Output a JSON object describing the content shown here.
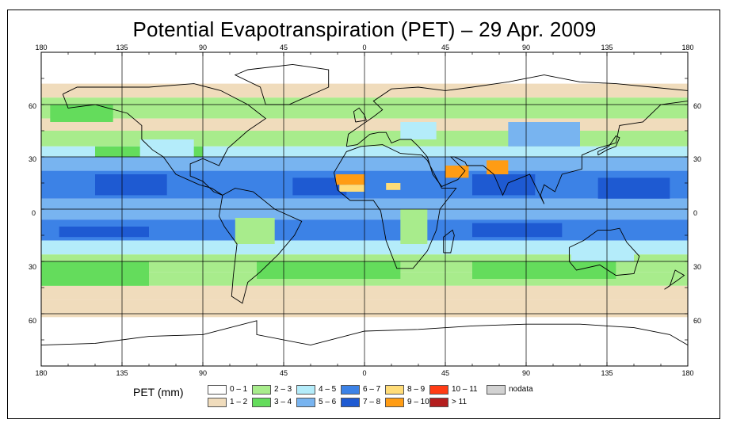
{
  "title": "Potential Evapotranspiration (PET) – 29 Apr. 2009",
  "top_axis": {
    "lon_labels": [
      "180",
      "135",
      "90",
      "45",
      "0",
      "45",
      "90",
      "135",
      "180"
    ]
  },
  "bottom_axis": {
    "lon_labels": [
      "180",
      "135",
      "90",
      "45",
      "0",
      "45",
      "90",
      "135",
      "180"
    ]
  },
  "left_axis": {
    "lat_labels": [
      "60",
      "30",
      "0",
      "30",
      "60"
    ]
  },
  "right_axis": {
    "lat_labels": [
      "60",
      "30",
      "0",
      "30",
      "60"
    ]
  },
  "legend": {
    "title": "PET (mm)",
    "items": [
      {
        "label": "0 – 1",
        "color": "#ffffff"
      },
      {
        "label": "1 – 2",
        "color": "#f0dcbc"
      },
      {
        "label": "2 – 3",
        "color": "#a8ec8c"
      },
      {
        "label": "3 – 4",
        "color": "#64dc5c"
      },
      {
        "label": "4 – 5",
        "color": "#b4ecfa"
      },
      {
        "label": "5 – 6",
        "color": "#78b4f0"
      },
      {
        "label": "6 – 7",
        "color": "#3c82e6"
      },
      {
        "label": "7 – 8",
        "color": "#1e5ad2"
      },
      {
        "label": "8 – 9",
        "color": "#ffdc78"
      },
      {
        "label": "9 – 10",
        "color": "#ff9c14"
      },
      {
        "label": "10 – 11",
        "color": "#ff3c14"
      },
      {
        "label": "> 11",
        "color": "#b41e1e"
      },
      {
        "label": "nodata",
        "color": "#d2d2d2"
      }
    ]
  },
  "map": {
    "lon_range": [
      -180,
      180
    ],
    "lat_range": [
      -90,
      90
    ],
    "grid_lons": [
      -135,
      -90,
      -45,
      0,
      45,
      90,
      135
    ],
    "grid_lats": [
      60,
      30,
      0,
      -30,
      -60
    ],
    "colors": {
      "ocean_tropics": "#3c82e6",
      "ocean_subtropics": "#78b4f0",
      "ocean_mid": "#b4ecfa",
      "green_mid": "#a8ec8c",
      "green_dark": "#64dc5c",
      "beige": "#f0dcbc",
      "white": "#ffffff",
      "deep_blue": "#1e5ad2",
      "hot_orange": "#ff9c14",
      "hot_yellow": "#ffdc78",
      "coast": "#000000"
    }
  }
}
